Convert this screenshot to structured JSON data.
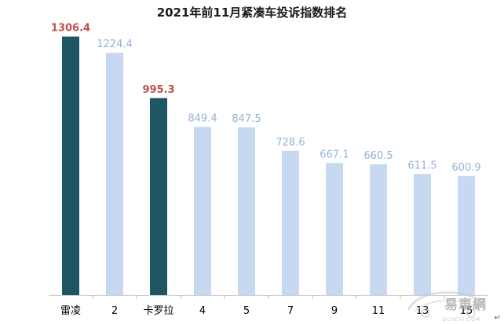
{
  "chart_data": {
    "type": "bar",
    "title": "2021年前11月紧凑车投诉指数排名",
    "categories": [
      "雷凌",
      "2",
      "卡罗拉",
      "4",
      "5",
      "7",
      "9",
      "11",
      "13",
      "15"
    ],
    "values": [
      1306.4,
      1224.4,
      995.3,
      849.4,
      847.5,
      728.6,
      667.1,
      660.5,
      611.5,
      600.9
    ],
    "value_labels": [
      "1306.4",
      "1224.4",
      "995.3",
      "849.4",
      "847.5",
      "728.6",
      "667.1",
      "660.5",
      "611.5",
      "600.9"
    ],
    "highlighted": [
      true,
      false,
      true,
      false,
      false,
      false,
      false,
      false,
      false,
      false
    ],
    "ylim": [
      0,
      1400
    ],
    "xlabel": "",
    "ylabel": "",
    "grid": false,
    "legend": "none"
  },
  "colors": {
    "highlight_bar": "#1f5663",
    "normal_bar": "#c6d9f1",
    "highlight_label": "#c0504d",
    "normal_label": "#95b3d7",
    "axis": "#bfbfbf",
    "category_text": "#000000"
  },
  "watermark": {
    "text": "易車網",
    "subtext": "QCHEYI.COM",
    "icon": "car-outline-logo"
  },
  "corner_mark": "↵"
}
